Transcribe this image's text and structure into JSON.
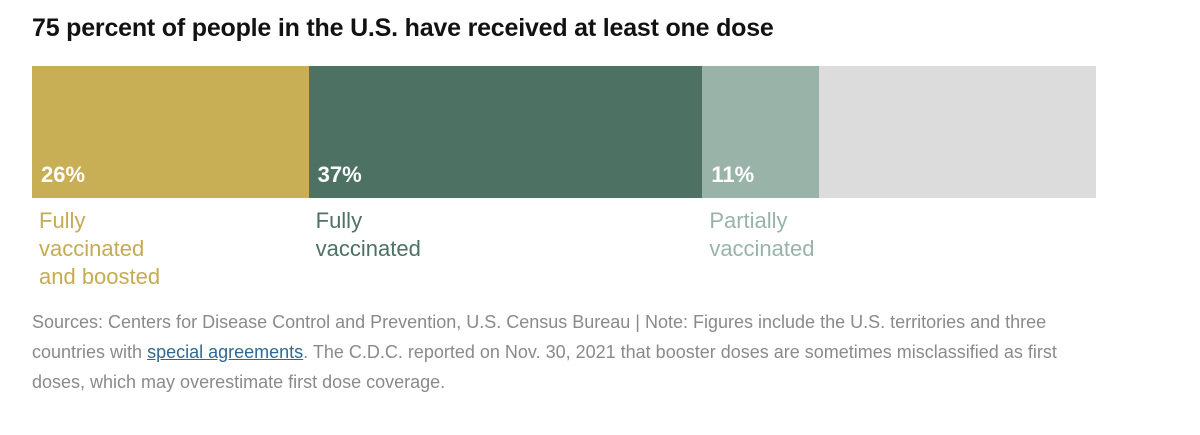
{
  "chart_data": {
    "type": "bar",
    "orientation": "horizontal-stacked",
    "title": "75 percent of people in the U.S. have received at least one dose",
    "xlim": [
      0,
      100
    ],
    "segments": [
      {
        "label": "Fully\nvaccinated\nand boosted",
        "value": 26,
        "value_label": "26%",
        "color": "#c8ae55",
        "label_color": "#c5ab52"
      },
      {
        "label": "Fully\nvaccinated",
        "value": 37,
        "value_label": "37%",
        "color": "#4d7263",
        "label_color": "#4d7263"
      },
      {
        "label": "Partially\nvaccinated",
        "value": 11,
        "value_label": "11%",
        "color": "#9ab3a9",
        "label_color": "#9ab3a9"
      }
    ],
    "remainder_color": "#dcdcdc"
  },
  "footer": {
    "source_prefix": "Sources: Centers for Disease Control and Prevention, U.S. Census Bureau | Note: Figures include the U.S. territories and three countries with ",
    "link_text": "special agreements",
    "source_suffix": ". The C.D.C. reported on Nov. 30, 2021 that booster doses are sometimes misclassified as first doses, which may overestimate first dose coverage."
  }
}
